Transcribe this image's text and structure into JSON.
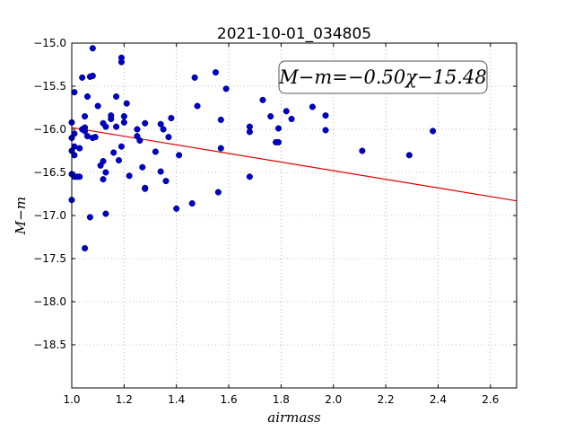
{
  "chart_data": {
    "type": "scatter",
    "title": "2021-10-01_034805",
    "xlabel": "airmass",
    "ylabel": "M−m",
    "xlim": [
      1.0,
      2.7
    ],
    "ylim": [
      -19.0,
      -15.0
    ],
    "y_inverted": true,
    "grid": true,
    "xticks": [
      "1.0",
      "1.2",
      "1.4",
      "1.6",
      "1.8",
      "2.0",
      "2.2",
      "2.4",
      "2.6"
    ],
    "yticks": [
      "−15.0",
      "−15.5",
      "−16.0",
      "−16.5",
      "−17.0",
      "−17.5",
      "−18.0",
      "−18.5"
    ],
    "annotation": "M−m=−0.50χ−15.48",
    "point_color": "#0000cc",
    "fit_color": "#e00000",
    "fit": {
      "slope": -0.5,
      "intercept": -15.48
    },
    "points": [
      [
        1.0,
        -16.1
      ],
      [
        1.0,
        -15.92
      ],
      [
        1.0,
        -16.25
      ],
      [
        1.0,
        -16.52
      ],
      [
        1.0,
        -16.82
      ],
      [
        1.01,
        -15.57
      ],
      [
        1.01,
        -16.05
      ],
      [
        1.01,
        -16.2
      ],
      [
        1.01,
        -16.3
      ],
      [
        1.01,
        -16.55
      ],
      [
        1.02,
        -16.55
      ],
      [
        1.03,
        -16.55
      ],
      [
        1.03,
        -16.22
      ],
      [
        1.04,
        -15.4
      ],
      [
        1.04,
        -16.0
      ],
      [
        1.05,
        -15.85
      ],
      [
        1.05,
        -15.98
      ],
      [
        1.05,
        -16.02
      ],
      [
        1.05,
        -17.38
      ],
      [
        1.06,
        -15.62
      ],
      [
        1.06,
        -16.08
      ],
      [
        1.07,
        -15.39
      ],
      [
        1.07,
        -17.02
      ],
      [
        1.08,
        -15.06
      ],
      [
        1.08,
        -15.38
      ],
      [
        1.08,
        -16.1
      ],
      [
        1.09,
        -16.09
      ],
      [
        1.1,
        -15.73
      ],
      [
        1.11,
        -16.42
      ],
      [
        1.12,
        -15.93
      ],
      [
        1.12,
        -16.37
      ],
      [
        1.12,
        -16.58
      ],
      [
        1.13,
        -15.97
      ],
      [
        1.13,
        -16.5
      ],
      [
        1.13,
        -16.98
      ],
      [
        1.15,
        -15.88
      ],
      [
        1.15,
        -15.84
      ],
      [
        1.16,
        -16.27
      ],
      [
        1.17,
        -15.97
      ],
      [
        1.17,
        -15.62
      ],
      [
        1.18,
        -16.36
      ],
      [
        1.19,
        -16.2
      ],
      [
        1.19,
        -15.17
      ],
      [
        1.19,
        -15.22
      ],
      [
        1.2,
        -15.92
      ],
      [
        1.2,
        -15.85
      ],
      [
        1.21,
        -15.7
      ],
      [
        1.22,
        -16.54
      ],
      [
        1.25,
        -16.0
      ],
      [
        1.25,
        -16.08
      ],
      [
        1.26,
        -16.13
      ],
      [
        1.27,
        -16.44
      ],
      [
        1.28,
        -16.68
      ],
      [
        1.28,
        -16.69
      ],
      [
        1.28,
        -15.93
      ],
      [
        1.32,
        -16.26
      ],
      [
        1.34,
        -15.94
      ],
      [
        1.34,
        -16.49
      ],
      [
        1.35,
        -16.0
      ],
      [
        1.36,
        -16.6
      ],
      [
        1.37,
        -16.09
      ],
      [
        1.38,
        -15.87
      ],
      [
        1.4,
        -16.92
      ],
      [
        1.41,
        -16.3
      ],
      [
        1.46,
        -16.86
      ],
      [
        1.47,
        -15.4
      ],
      [
        1.48,
        -15.73
      ],
      [
        1.55,
        -15.34
      ],
      [
        1.56,
        -16.73
      ],
      [
        1.57,
        -16.22
      ],
      [
        1.57,
        -15.89
      ],
      [
        1.59,
        -15.53
      ],
      [
        1.68,
        -15.97
      ],
      [
        1.68,
        -16.03
      ],
      [
        1.68,
        -16.55
      ],
      [
        1.73,
        -15.66
      ],
      [
        1.76,
        -15.85
      ],
      [
        1.78,
        -16.15
      ],
      [
        1.79,
        -16.15
      ],
      [
        1.79,
        -15.99
      ],
      [
        1.82,
        -15.79
      ],
      [
        1.84,
        -15.88
      ],
      [
        1.92,
        -15.74
      ],
      [
        1.97,
        -15.84
      ],
      [
        1.97,
        -16.01
      ],
      [
        2.11,
        -16.25
      ],
      [
        2.29,
        -16.3
      ],
      [
        2.38,
        -16.02
      ]
    ]
  }
}
